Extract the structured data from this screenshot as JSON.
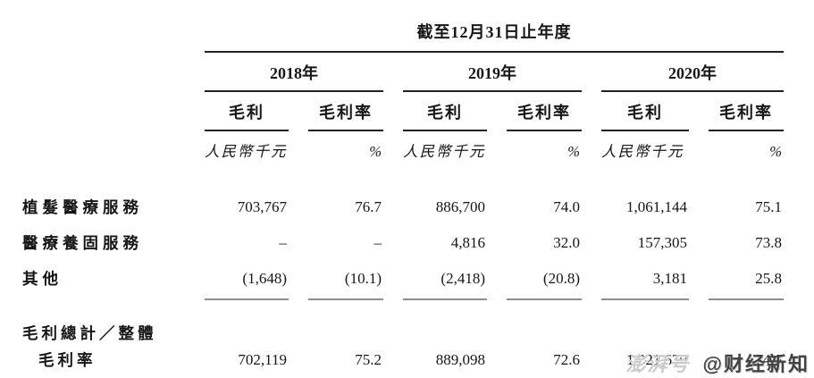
{
  "table": {
    "title": "截至12月31日止年度",
    "years": [
      "2018年",
      "2019年",
      "2020年"
    ],
    "col_gross": "毛利",
    "col_margin": "毛利率",
    "unit_money": "人民幣千元",
    "unit_pct": "%",
    "rows": [
      {
        "label": "植髮醫療服務",
        "values": [
          "703,767",
          "76.7",
          "886,700",
          "74.0",
          "1,061,144",
          "75.1"
        ]
      },
      {
        "label": "醫療養固服務",
        "values": [
          "–",
          "–",
          "4,816",
          "32.0",
          "157,305",
          "73.8"
        ]
      },
      {
        "label": "其他",
        "values": [
          "(1,648)",
          "(10.1)",
          "(2,418)",
          "(20.8)",
          "3,181",
          "25.8"
        ]
      }
    ],
    "total": {
      "label_line1": "毛利總計／整體",
      "label_line2": "毛利率",
      "values": [
        "702,119",
        "75.2",
        "889,098",
        "72.6",
        "1,221,630",
        "74.6"
      ]
    }
  },
  "watermark": {
    "platform": "澎湃号",
    "account": "@财经新知"
  }
}
